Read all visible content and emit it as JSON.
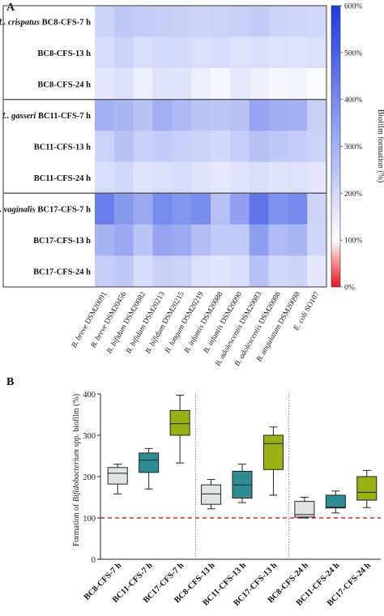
{
  "panel_a": {
    "panel_letter": "A",
    "colorbar_label": "Biofilm formation (%)",
    "colorbar_ticks": [
      "600%",
      "500%",
      "400%",
      "300%",
      "200%",
      "100%",
      "0%"
    ],
    "colors": {
      "low": "#e8141c",
      "mid": "#ffffff",
      "high": "#1c3ae0"
    },
    "row_labels": [
      {
        "species": "L. crispatus",
        "label": "BC8-CFS-7 h"
      },
      {
        "species": "",
        "label": "BC8-CFS-13 h"
      },
      {
        "species": "",
        "label": "BC8-CFS-24 h"
      },
      {
        "species": "L. gasseri",
        "label": "BC11-CFS-7 h"
      },
      {
        "species": "",
        "label": "BC11-CFS-13 h"
      },
      {
        "species": "",
        "label": "BC11-CFS-24 h"
      },
      {
        "species": "L. vaginalis",
        "label": "BC17-CFS-7 h"
      },
      {
        "species": "",
        "label": "BC17-CFS-13 h"
      },
      {
        "species": "",
        "label": "BC17-CFS-24 h"
      }
    ],
    "col_labels": [
      {
        "italic": "B. breve",
        "suffix": " DSM20091"
      },
      {
        "italic": "B. breve",
        "suffix": " DSM20456"
      },
      {
        "italic": "B. bifidum",
        "suffix": " DSM20082"
      },
      {
        "italic": "B. bifidum",
        "suffix": " DSM20213"
      },
      {
        "italic": "B. bifidum",
        "suffix": " DSM20215"
      },
      {
        "italic": "B. longum",
        "suffix": " DSM20219"
      },
      {
        "italic": "B. infantis",
        "suffix": " DSM20088"
      },
      {
        "italic": "B. infantis",
        "suffix": " DSM20090"
      },
      {
        "italic": "B. adolescentis",
        "suffix": " DSM20083"
      },
      {
        "italic": "B. adolescentis",
        "suffix": " DSM20086"
      },
      {
        "italic": "B. angulatum",
        "suffix": " DSM20098"
      },
      {
        "italic": "E. coli",
        "suffix": " SO107"
      }
    ]
  },
  "panel_b": {
    "panel_letter": "B",
    "ylabel_prefix": "Formation of ",
    "ylabel_italic": "Bifidobacterium",
    "ylabel_suffix": " spp. biofilm (%)",
    "reference_line": 100,
    "colors": {
      "BC8": "#dfe3e3",
      "BC11": "#2e8c94",
      "BC17": "#9ab014",
      "reference": "#e0242c"
    }
  },
  "chart_data": [
    {
      "type": "heatmap",
      "title": "",
      "colorbar_range": [
        0,
        600
      ],
      "rows": [
        "BC8-CFS-7 h",
        "BC8-CFS-13 h",
        "BC8-CFS-24 h",
        "BC11-CFS-7 h",
        "BC11-CFS-13 h",
        "BC11-CFS-24 h",
        "BC17-CFS-7 h",
        "BC17-CFS-13 h",
        "BC17-CFS-24 h"
      ],
      "columns": [
        "B. breve DSM20091",
        "B. breve DSM20456",
        "B. bifidum DSM20082",
        "B. bifidum DSM20213",
        "B. bifidum DSM20215",
        "B. longum DSM20219",
        "B. infantis DSM20088",
        "B. infantis DSM20090",
        "B. adolescentis DSM20083",
        "B. adolescentis DSM20086",
        "B. angulatum DSM20098",
        "E. coli SO107"
      ],
      "values": [
        [
          210,
          240,
          230,
          225,
          220,
          210,
          215,
          220,
          235,
          215,
          205,
          200
        ],
        [
          190,
          215,
          185,
          195,
          195,
          180,
          190,
          175,
          185,
          175,
          170,
          180
        ],
        [
          160,
          180,
          140,
          170,
          165,
          140,
          120,
          155,
          140,
          120,
          130,
          110
        ],
        [
          300,
          285,
          255,
          305,
          280,
          250,
          245,
          255,
          330,
          310,
          300,
          220
        ],
        [
          215,
          255,
          220,
          235,
          220,
          215,
          200,
          225,
          255,
          240,
          230,
          215
        ],
        [
          185,
          200,
          170,
          180,
          190,
          165,
          155,
          170,
          185,
          165,
          175,
          160
        ],
        [
          430,
          360,
          320,
          395,
          370,
          390,
          260,
          340,
          450,
          380,
          400,
          210
        ],
        [
          290,
          320,
          250,
          330,
          315,
          265,
          235,
          235,
          345,
          275,
          285,
          205
        ],
        [
          225,
          240,
          190,
          220,
          215,
          180,
          165,
          185,
          255,
          200,
          210,
          160
        ]
      ]
    },
    {
      "type": "box",
      "title": "",
      "ylim": [
        0,
        400
      ],
      "yticks": [
        0,
        100,
        200,
        300,
        400
      ],
      "categories": [
        "BC8-CFS-7 h",
        "BC11-CFS-7 h",
        "BC17-CFS-7 h",
        "BC8-CFS-13 h",
        "BC11-CFS-13 h",
        "BC17-CFS-13 h",
        "BC8-CFS-24 h",
        "BC11-CFS-24 h",
        "BC17-CFS-24 h"
      ],
      "boxes": [
        {
          "min": 158,
          "q1": 182,
          "median": 208,
          "q3": 222,
          "max": 230
        },
        {
          "min": 170,
          "q1": 210,
          "median": 240,
          "q3": 257,
          "max": 268
        },
        {
          "min": 233,
          "q1": 300,
          "median": 328,
          "q3": 360,
          "max": 397
        },
        {
          "min": 122,
          "q1": 133,
          "median": 158,
          "q3": 180,
          "max": 193
        },
        {
          "min": 137,
          "q1": 148,
          "median": 180,
          "q3": 213,
          "max": 230
        },
        {
          "min": 155,
          "q1": 217,
          "median": 280,
          "q3": 300,
          "max": 320
        },
        {
          "min": 100,
          "q1": 102,
          "median": 108,
          "q3": 140,
          "max": 150
        },
        {
          "min": 112,
          "q1": 124,
          "median": 126,
          "q3": 155,
          "max": 165
        },
        {
          "min": 125,
          "q1": 143,
          "median": 162,
          "q3": 200,
          "max": 215
        }
      ]
    }
  ]
}
